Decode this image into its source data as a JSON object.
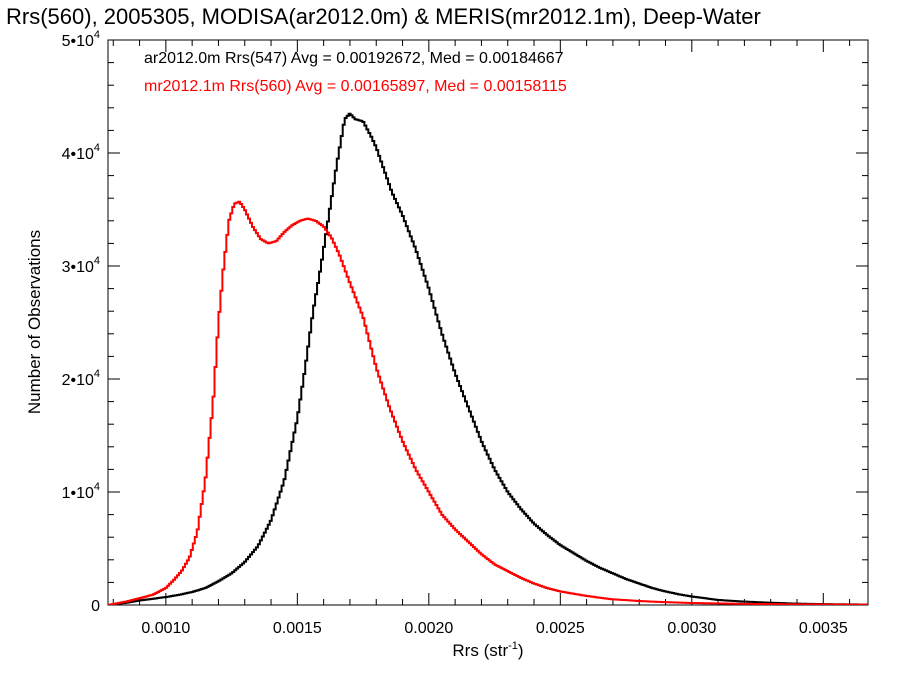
{
  "chart_data": {
    "type": "line",
    "title": "Rrs(560), 2005305, MODISA(ar2012.0m) & MERIS(mr2012.1m), Deep-Water",
    "xlabel_base": "Rrs (str",
    "xlabel_sup": "-1",
    "xlabel_close": ")",
    "ylabel": "Number of Observations",
    "xlim": [
      0.00078,
      0.00367
    ],
    "ylim": [
      0,
      50000
    ],
    "x_ticks": [
      0.001,
      0.0015,
      0.002,
      0.0025,
      0.003,
      0.0035
    ],
    "x_tick_labels": [
      "0.0010",
      "0.0015",
      "0.0020",
      "0.0025",
      "0.0030",
      "0.0035"
    ],
    "y_ticks": [
      {
        "value": 0,
        "label": "0",
        "sup": ""
      },
      {
        "value": 10000,
        "label": "1•10",
        "sup": "4"
      },
      {
        "value": 20000,
        "label": "2•10",
        "sup": "4"
      },
      {
        "value": 30000,
        "label": "3•10",
        "sup": "4"
      },
      {
        "value": 40000,
        "label": "4•10",
        "sup": "4"
      },
      {
        "value": 50000,
        "label": "5•10",
        "sup": "4"
      }
    ],
    "legend_placement": "top-left",
    "grid": false,
    "series": [
      {
        "name": "ar2012.0m Rrs(547) Avg = 0.00192672, Med = 0.00184667",
        "color": "#000000",
        "points": [
          [
            0.00078,
            0
          ],
          [
            0.00085,
            200
          ],
          [
            0.0009,
            400
          ],
          [
            0.00095,
            550
          ],
          [
            0.001,
            700
          ],
          [
            0.00105,
            900
          ],
          [
            0.0011,
            1150
          ],
          [
            0.00115,
            1500
          ],
          [
            0.0012,
            2100
          ],
          [
            0.00125,
            2800
          ],
          [
            0.0013,
            3800
          ],
          [
            0.00135,
            5200
          ],
          [
            0.0014,
            7500
          ],
          [
            0.00145,
            11000
          ],
          [
            0.0015,
            16500
          ],
          [
            0.00153,
            21000
          ],
          [
            0.00156,
            26000
          ],
          [
            0.00159,
            30000
          ],
          [
            0.00162,
            34500
          ],
          [
            0.00165,
            39000
          ],
          [
            0.00168,
            43000
          ],
          [
            0.0017,
            43500
          ],
          [
            0.00172,
            43000
          ],
          [
            0.00175,
            42800
          ],
          [
            0.00178,
            41500
          ],
          [
            0.0018,
            40500
          ],
          [
            0.00183,
            38500
          ],
          [
            0.00186,
            36500
          ],
          [
            0.0019,
            34500
          ],
          [
            0.00195,
            31500
          ],
          [
            0.002,
            28000
          ],
          [
            0.00205,
            24000
          ],
          [
            0.0021,
            20500
          ],
          [
            0.00215,
            17500
          ],
          [
            0.0022,
            14500
          ],
          [
            0.00225,
            12000
          ],
          [
            0.0023,
            10000
          ],
          [
            0.00235,
            8500
          ],
          [
            0.0024,
            7200
          ],
          [
            0.00245,
            6200
          ],
          [
            0.0025,
            5300
          ],
          [
            0.00255,
            4600
          ],
          [
            0.0026,
            3900
          ],
          [
            0.00265,
            3300
          ],
          [
            0.0027,
            2800
          ],
          [
            0.00275,
            2300
          ],
          [
            0.0028,
            1900
          ],
          [
            0.00285,
            1500
          ],
          [
            0.0029,
            1200
          ],
          [
            0.00295,
            950
          ],
          [
            0.003,
            750
          ],
          [
            0.0031,
            450
          ],
          [
            0.0032,
            300
          ],
          [
            0.0033,
            200
          ],
          [
            0.0034,
            120
          ],
          [
            0.0035,
            80
          ],
          [
            0.00367,
            40
          ]
        ]
      },
      {
        "name": "mr2012.1m Rrs(560) Avg = 0.00165897, Med = 0.00158115",
        "color": "#ff0000",
        "points": [
          [
            0.00078,
            0
          ],
          [
            0.00085,
            300
          ],
          [
            0.0009,
            600
          ],
          [
            0.00095,
            900
          ],
          [
            0.001,
            1500
          ],
          [
            0.00103,
            2200
          ],
          [
            0.00106,
            3000
          ],
          [
            0.00109,
            4200
          ],
          [
            0.00112,
            6500
          ],
          [
            0.00115,
            11000
          ],
          [
            0.00118,
            18000
          ],
          [
            0.0012,
            25000
          ],
          [
            0.00122,
            30000
          ],
          [
            0.00124,
            34000
          ],
          [
            0.00126,
            35500
          ],
          [
            0.00128,
            35700
          ],
          [
            0.0013,
            35000
          ],
          [
            0.00133,
            33500
          ],
          [
            0.00136,
            32400
          ],
          [
            0.00139,
            32000
          ],
          [
            0.00142,
            32200
          ],
          [
            0.00145,
            33000
          ],
          [
            0.00148,
            33600
          ],
          [
            0.00151,
            34000
          ],
          [
            0.00154,
            34200
          ],
          [
            0.00157,
            34000
          ],
          [
            0.0016,
            33500
          ],
          [
            0.00163,
            32500
          ],
          [
            0.00166,
            31000
          ],
          [
            0.0017,
            28500
          ],
          [
            0.00175,
            25500
          ],
          [
            0.0018,
            21000
          ],
          [
            0.00185,
            17500
          ],
          [
            0.0019,
            14500
          ],
          [
            0.00195,
            12000
          ],
          [
            0.002,
            10000
          ],
          [
            0.00205,
            8000
          ],
          [
            0.0021,
            6700
          ],
          [
            0.00215,
            5600
          ],
          [
            0.0022,
            4500
          ],
          [
            0.00225,
            3600
          ],
          [
            0.0023,
            3000
          ],
          [
            0.00235,
            2400
          ],
          [
            0.0024,
            1900
          ],
          [
            0.00245,
            1500
          ],
          [
            0.0025,
            1200
          ],
          [
            0.0026,
            800
          ],
          [
            0.0027,
            500
          ],
          [
            0.0028,
            350
          ],
          [
            0.0029,
            250
          ],
          [
            0.003,
            180
          ],
          [
            0.0032,
            100
          ],
          [
            0.0034,
            60
          ],
          [
            0.00367,
            30
          ]
        ]
      }
    ]
  }
}
